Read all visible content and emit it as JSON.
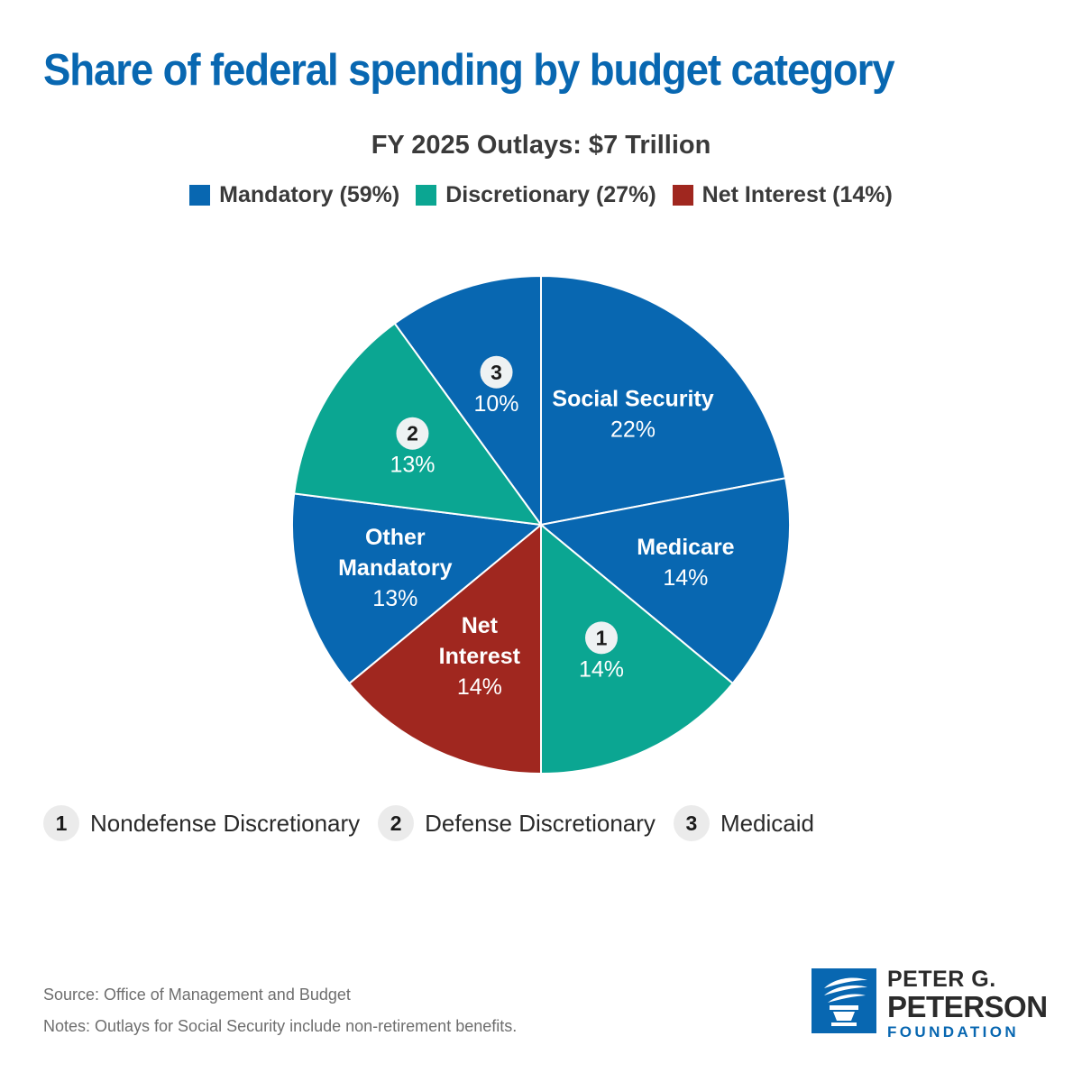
{
  "title": "Share of federal spending by budget category",
  "subtitle": "FY 2025 Outlays: $7 Trillion",
  "legend": [
    {
      "label": "Mandatory (59%)",
      "color": "#0867b1"
    },
    {
      "label": "Discretionary (27%)",
      "color": "#0ba692"
    },
    {
      "label": "Net Interest (14%)",
      "color": "#a0271f"
    }
  ],
  "chart_data": {
    "type": "pie",
    "title": "Share of federal spending by budget category",
    "subtitle": "FY 2025 Outlays: $7 Trillion",
    "slices": [
      {
        "name": "Social Security",
        "label_lines": [
          "Social Security"
        ],
        "value": 22,
        "value_label": "22%",
        "category": "Mandatory",
        "color": "#0867b1"
      },
      {
        "name": "Medicare",
        "label_lines": [
          "Medicare"
        ],
        "value": 14,
        "value_label": "14%",
        "category": "Mandatory",
        "color": "#0867b1"
      },
      {
        "name": "Nondefense Discretionary",
        "marker": "1",
        "value": 14,
        "value_label": "14%",
        "category": "Discretionary",
        "color": "#0ba692"
      },
      {
        "name": "Net Interest",
        "label_lines": [
          "Net",
          "Interest"
        ],
        "value": 14,
        "value_label": "14%",
        "category": "Net Interest",
        "color": "#a0271f"
      },
      {
        "name": "Other Mandatory",
        "label_lines": [
          "Other",
          "Mandatory"
        ],
        "value": 13,
        "value_label": "13%",
        "category": "Mandatory",
        "color": "#0867b1"
      },
      {
        "name": "Defense Discretionary",
        "marker": "2",
        "value": 13,
        "value_label": "13%",
        "category": "Discretionary",
        "color": "#0ba692"
      },
      {
        "name": "Medicaid",
        "marker": "3",
        "value": 10,
        "value_label": "10%",
        "category": "Mandatory",
        "color": "#0867b1"
      }
    ]
  },
  "footnotes": [
    {
      "num": "1",
      "label": "Nondefense Discretionary"
    },
    {
      "num": "2",
      "label": "Defense Discretionary"
    },
    {
      "num": "3",
      "label": "Medicaid"
    }
  ],
  "source": "Source: Office of Management and Budget",
  "notes": "Notes: Outlays for Social Security include non-retirement benefits.",
  "logo": {
    "line1": "PETER G.",
    "line2": "PETERSON",
    "line3": "FOUNDATION",
    "icon": "torch-icon"
  }
}
